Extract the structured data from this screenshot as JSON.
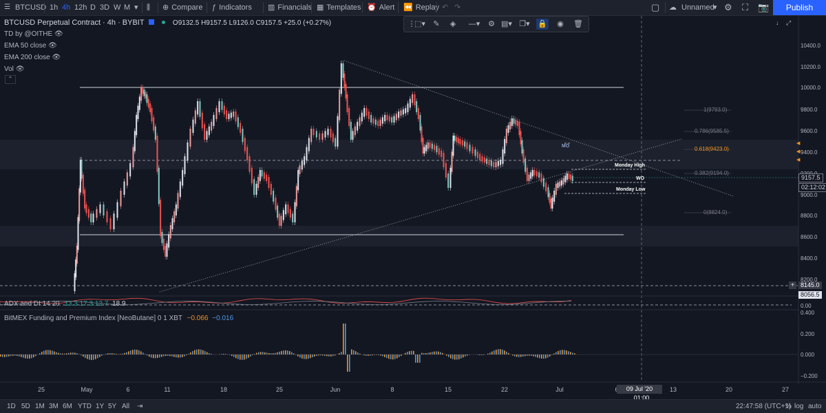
{
  "toolbar": {
    "symbol": "BTCUSD",
    "intervals": [
      "1h",
      "4h",
      "12h",
      "D",
      "3D",
      "W",
      "M"
    ],
    "active_interval": "4h",
    "compare_label": "Compare",
    "indicators_label": "Indicators",
    "financials_label": "Financials",
    "templates_label": "Templates",
    "alert_label": "Alert",
    "replay_label": "Replay",
    "layout_name": "Unnamed",
    "publish_label": "Publish"
  },
  "legend": {
    "title": "BTCUSD Perpetual Contract · 4h · BYBIT",
    "ohlc": "O9132.5 H9157.5 L9126.0 C9157.5 +25.0 (+0.27%)",
    "studies": [
      "TD by @OITHE",
      "EMA 50 close",
      "EMA 200 close",
      "Vol"
    ]
  },
  "indicators": {
    "adx_label": "ADX and DI 14 20",
    "adx_values": "13.3  17.3  12.7",
    "adx_main": "18.9",
    "funding_label": "BitMEX Funding and Premium Index [NeoButane] 0 1 XBT",
    "funding_v1": "−0.066",
    "funding_v2": "−0.016"
  },
  "price_axis": {
    "labels": [
      "10400.0",
      "10200.0",
      "10000.0",
      "9800.0",
      "9600.0",
      "9400.0",
      "9200.0",
      "9000.0",
      "8800.0",
      "8600.0",
      "8400.0",
      "8200.0"
    ],
    "current_price": "9157.5",
    "countdown": "02:12:02",
    "tag_8145": "8145.0",
    "tag_8056": "8056.5",
    "osc_labels": [
      "0.400",
      "0.200",
      "0.000",
      "−0.200"
    ],
    "osc_top": "0.00"
  },
  "fib": {
    "levels": [
      "1(9793.0)",
      "0.786(9585.5)",
      "0.618(9423.0)",
      "0.382(9194.0)",
      "0(8824.0)"
    ]
  },
  "annotations": {
    "mo": "MO",
    "monday_high": "Monday High",
    "wo": "WO",
    "monday_low": "Monday Low"
  },
  "time_axis": {
    "labels": [
      "25",
      "May",
      "6",
      "11",
      "18",
      "25",
      "Jun",
      "8",
      "15",
      "22",
      "Jul",
      "6",
      "13",
      "20",
      "27"
    ],
    "crosshair_date": "09 Jul '20",
    "crosshair_time": "01:00"
  },
  "bottom": {
    "ranges": [
      "1D",
      "5D",
      "1M",
      "3M",
      "6M",
      "YTD",
      "1Y",
      "5Y",
      "All"
    ],
    "clock": "22:47:58 (UTC+1)",
    "pct": "%",
    "log": "log",
    "auto": "auto"
  },
  "colors": {
    "up": "#26a69a",
    "down": "#ef5350",
    "accent": "#2962ff",
    "fib_orange": "#f7931a"
  }
}
